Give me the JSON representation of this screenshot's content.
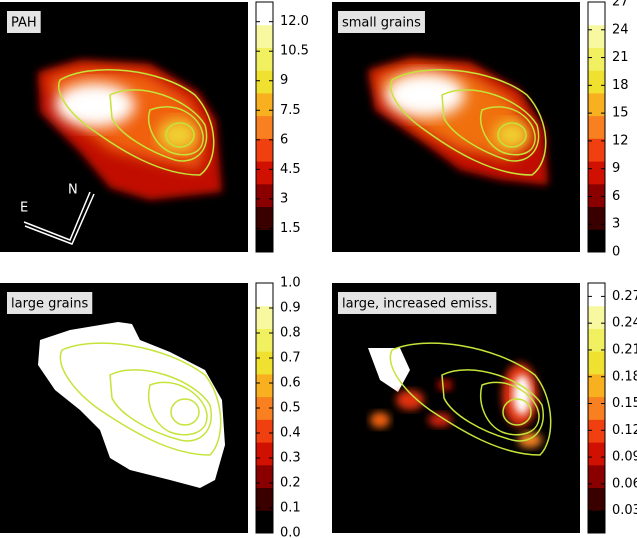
{
  "chart_data": [
    {
      "type": "image",
      "title": "PAH",
      "annotations": [
        "E",
        "N"
      ],
      "colormap": [
        "#000000",
        "#3a0000",
        "#8a0000",
        "#d01000",
        "#f04010",
        "#f88020",
        "#f8b020",
        "#f0e030",
        "#f0f060",
        "#f8f8a0",
        "#ffffff"
      ],
      "ylim": [
        0.3,
        13.0
      ],
      "yticks": [
        1.5,
        3.0,
        4.5,
        6.0,
        7.5,
        9.0,
        10.5,
        {
          "value": 12.0,
          "label": "12.0"
        }
      ]
    },
    {
      "type": "image",
      "title": "small grains",
      "colormap": [
        "#000000",
        "#3a0000",
        "#8a0000",
        "#d01000",
        "#f04010",
        "#f88020",
        "#f8b020",
        "#f0e030",
        "#f0f060",
        "#f8f8a0",
        "#ffffff"
      ],
      "ylim": [
        0,
        27
      ],
      "yticks": [
        0,
        3,
        6,
        9,
        12,
        15,
        18,
        21,
        24,
        27
      ]
    },
    {
      "type": "image",
      "title": "large grains",
      "colormap": [
        "#000000",
        "#3a0000",
        "#8a0000",
        "#d01000",
        "#f04010",
        "#f88020",
        "#f8b020",
        "#f0e030",
        "#f0f060",
        "#f8f8a0",
        "#ffffff"
      ],
      "ylim": [
        0,
        1
      ],
      "yticks": [
        {
          "value": 0,
          "label": "0.0"
        },
        0.1,
        0.2,
        0.3,
        0.4,
        0.5,
        0.6,
        0.7,
        0.8,
        0.9,
        {
          "value": 1,
          "label": "1.0"
        }
      ]
    },
    {
      "type": "image",
      "title": "large, increased emiss.",
      "colormap": [
        "#000000",
        "#3a0000",
        "#8a0000",
        "#d01000",
        "#f04010",
        "#f88020",
        "#f8b020",
        "#f0e030",
        "#f0f060",
        "#f8f8a0",
        "#ffffff"
      ],
      "ylim": [
        0.005,
        0.285
      ],
      "yticks": [
        0.03,
        0.06,
        0.09,
        0.12,
        0.15,
        0.18,
        0.21,
        0.24,
        0.27
      ]
    }
  ]
}
